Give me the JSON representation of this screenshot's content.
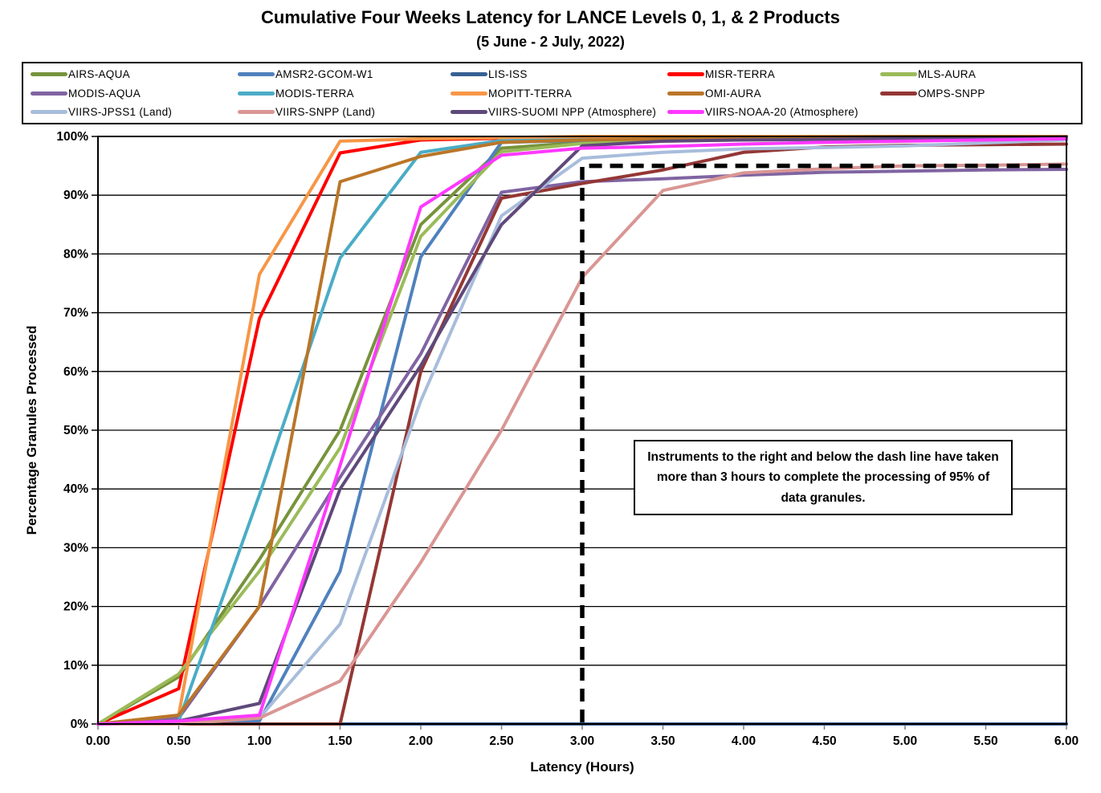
{
  "page": {
    "title": "Cumulative Four Weeks Latency  for LANCE Levels 0, 1, & 2 Products",
    "subtitle": "(5 June  - 2 July, 2022)"
  },
  "axes": {
    "x_label": "Latency (Hours)",
    "y_label": "Percentage Granules Processed",
    "x_tick_labels": [
      "0.00",
      "0.50",
      "1.00",
      "1.50",
      "2.00",
      "2.50",
      "3.00",
      "3.50",
      "4.00",
      "4.50",
      "5.00",
      "5.50",
      "6.00"
    ],
    "y_tick_labels": [
      "0%",
      "10%",
      "20%",
      "30%",
      "40%",
      "50%",
      "60%",
      "70%",
      "80%",
      "90%",
      "100%"
    ]
  },
  "annotation": {
    "text": "Instruments to the right and below the dash line have taken more than 3 hours to complete the processing of 95% of data granules."
  },
  "chart_data": {
    "type": "line",
    "title": "Cumulative Four Weeks Latency for LANCE Levels 0, 1, & 2 Products",
    "subtitle": "(5 June - 2 July, 2022)",
    "xlabel": "Latency (Hours)",
    "ylabel": "Percentage Granules Processed",
    "xlim": [
      0,
      6
    ],
    "ylim": [
      0,
      100
    ],
    "grid": "horizontal-black",
    "legend_position": "top-box",
    "x": [
      0,
      0.5,
      1.0,
      1.5,
      2.0,
      2.5,
      3.0,
      3.5,
      4.0,
      4.5,
      5.0,
      5.5,
      6.0
    ],
    "series": [
      {
        "name": "AIRS-AQUA",
        "color": "#77933C",
        "values": [
          0,
          8,
          28,
          50,
          85,
          98,
          99,
          99.4,
          99.6,
          99.7,
          99.8,
          99.9,
          100
        ]
      },
      {
        "name": "AMSR2-GCOM-W1",
        "color": "#4F81BD",
        "values": [
          0,
          0,
          0.5,
          26,
          79.5,
          99,
          99.3,
          99.5,
          99.6,
          99.7,
          99.8,
          99.9,
          100
        ]
      },
      {
        "name": "LIS-ISS",
        "color": "#366092",
        "values": [
          0,
          0,
          0,
          0,
          0,
          0,
          0,
          0,
          0,
          0,
          0,
          0,
          0
        ]
      },
      {
        "name": "MISR-TERRA",
        "color": "#FE0000",
        "values": [
          0,
          6,
          69,
          97.2,
          99.4,
          99.7,
          99.8,
          99.9,
          100,
          100,
          100,
          100,
          100
        ]
      },
      {
        "name": "MLS-AURA",
        "color": "#9BBB59",
        "values": [
          0,
          8.5,
          26,
          47,
          83,
          97.4,
          98.8,
          99.2,
          99.4,
          99.5,
          99.6,
          99.8,
          99.9
        ]
      },
      {
        "name": "MODIS-AQUA",
        "color": "#8064A2",
        "values": [
          0,
          1,
          20,
          42,
          63,
          90.5,
          92.3,
          92.8,
          93.4,
          93.9,
          94.1,
          94.3,
          94.4
        ]
      },
      {
        "name": "MODIS-TERRA",
        "color": "#4BACC6",
        "values": [
          0,
          0.5,
          39,
          79.3,
          97.3,
          99.3,
          99.6,
          99.7,
          99.8,
          99.9,
          100,
          100,
          100
        ]
      },
      {
        "name": "MOPITT-TERRA",
        "color": "#F79646",
        "values": [
          0,
          1.5,
          76.5,
          99.2,
          99.6,
          99.8,
          100,
          100,
          100,
          100,
          100,
          100,
          100
        ]
      },
      {
        "name": "OMI-AURA",
        "color": "#BA7628",
        "values": [
          0,
          1.5,
          20,
          92.3,
          96.6,
          99,
          99.4,
          99.6,
          99.8,
          99.9,
          100,
          100,
          100
        ]
      },
      {
        "name": "OMPS-SNPP",
        "color": "#943735",
        "values": [
          0,
          0,
          0,
          0,
          60,
          89.5,
          92,
          94.3,
          97.3,
          98.2,
          98.5,
          98.6,
          98.7
        ]
      },
      {
        "name": "VIIRS-JPSS1 (Land)",
        "color": "#A8BDDB",
        "values": [
          0,
          0,
          1,
          17,
          55,
          86.5,
          96.3,
          97.3,
          97.9,
          98.1,
          98.4,
          98.9,
          99.4
        ]
      },
      {
        "name": "VIIRS-SNPP (Land)",
        "color": "#D99694",
        "values": [
          0,
          0,
          1,
          7.3,
          27.5,
          50,
          76,
          90.8,
          93.8,
          94.5,
          95,
          95.1,
          95.3
        ]
      },
      {
        "name": "VIIRS-SUOMI NPP (Atmosphere)",
        "color": "#5F497A",
        "values": [
          0,
          0.5,
          3.5,
          40,
          61,
          85,
          98.4,
          99.2,
          99.4,
          99.5,
          99.6,
          99.8,
          99.9
        ]
      },
      {
        "name": "VIIRS-NOAA-20 (Atmosphere)",
        "color": "#FF38FF",
        "values": [
          0,
          0.5,
          1.5,
          44,
          88,
          96.8,
          98,
          98.3,
          98.7,
          99,
          99.2,
          99.4,
          99.6
        ]
      }
    ],
    "reference_lines": {
      "style": "dashed-black",
      "vertical_at_hours": 3.0,
      "horizontal_at_percent": 95,
      "meaning": "95% completion within 3 hours threshold"
    }
  }
}
